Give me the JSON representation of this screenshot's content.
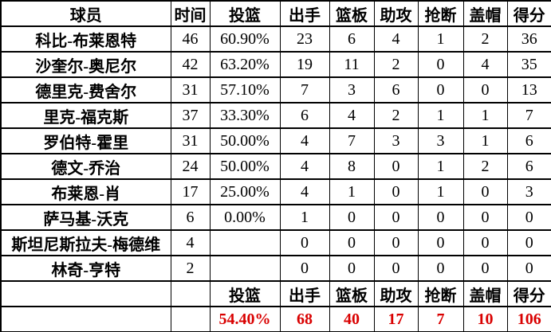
{
  "colors": {
    "text": "#000000",
    "border": "#000000",
    "background": "#ffffff",
    "totals_text": "#d90000"
  },
  "chart_data": {
    "type": "table",
    "columns": [
      "球员",
      "时间",
      "投篮",
      "出手",
      "篮板",
      "助攻",
      "抢断",
      "盖帽",
      "得分"
    ],
    "rows": [
      {
        "name": "科比-布莱恩特",
        "values": [
          "46",
          "60.90%",
          "23",
          "6",
          "4",
          "1",
          "2",
          "36"
        ]
      },
      {
        "name": "沙奎尔-奥尼尔",
        "values": [
          "42",
          "63.20%",
          "19",
          "11",
          "2",
          "0",
          "4",
          "35"
        ]
      },
      {
        "name": "德里克-费舍尔",
        "values": [
          "31",
          "57.10%",
          "7",
          "3",
          "6",
          "0",
          "0",
          "13"
        ]
      },
      {
        "name": "里克-福克斯",
        "values": [
          "37",
          "33.30%",
          "6",
          "4",
          "2",
          "1",
          "1",
          "7"
        ]
      },
      {
        "name": "罗伯特-霍里",
        "values": [
          "31",
          "50.00%",
          "4",
          "7",
          "3",
          "3",
          "1",
          "6"
        ]
      },
      {
        "name": "德文-乔治",
        "values": [
          "24",
          "50.00%",
          "4",
          "8",
          "0",
          "1",
          "2",
          "6"
        ]
      },
      {
        "name": "布莱恩-肖",
        "values": [
          "17",
          "25.00%",
          "4",
          "1",
          "0",
          "1",
          "0",
          "3"
        ]
      },
      {
        "name": "萨马基-沃克",
        "values": [
          "6",
          "0.00%",
          "1",
          "0",
          "0",
          "0",
          "0",
          "0"
        ]
      },
      {
        "name": "斯坦尼斯拉夫-梅德维",
        "values": [
          "4",
          "",
          "0",
          "0",
          "0",
          "0",
          "0",
          "0"
        ]
      },
      {
        "name": "林奇-亨特",
        "values": [
          "2",
          "",
          "0",
          "0",
          "0",
          "0",
          "0",
          "0"
        ]
      }
    ],
    "summary": {
      "labels": [
        "投篮",
        "出手",
        "篮板",
        "助攻",
        "抢断",
        "盖帽",
        "得分"
      ],
      "values": [
        "54.40%",
        "68",
        "40",
        "17",
        "7",
        "10",
        "106"
      ]
    }
  }
}
